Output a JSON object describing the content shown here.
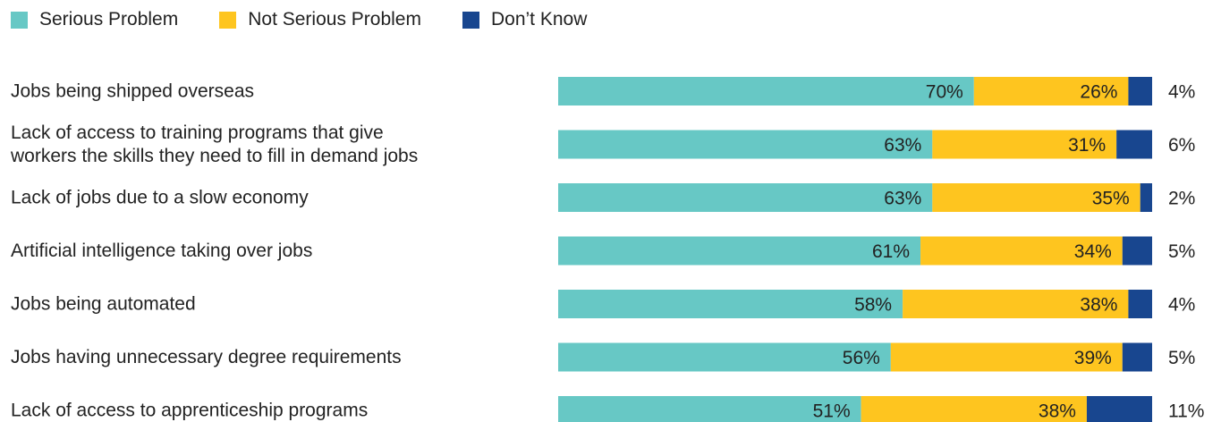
{
  "chart_data": {
    "type": "bar",
    "orientation": "horizontal",
    "stacked": true,
    "legend_position": "top-left",
    "xlim": [
      0,
      100
    ],
    "categories": [
      [
        "Jobs being shipped overseas"
      ],
      [
        "Lack of access to training programs that give",
        "workers the skills they need to fill in demand jobs"
      ],
      [
        "Lack of jobs due to a slow economy"
      ],
      [
        "Artificial intelligence taking over jobs"
      ],
      [
        "Jobs being automated"
      ],
      [
        "Jobs having unnecessary degree requirements"
      ],
      [
        "Lack of access to apprenticeship programs"
      ]
    ],
    "series": [
      {
        "name": "Serious Problem",
        "color": "#67C8C5",
        "values": [
          70,
          63,
          63,
          61,
          58,
          56,
          51
        ]
      },
      {
        "name": "Not Serious Problem",
        "color": "#FEC51F",
        "values": [
          26,
          31,
          35,
          34,
          38,
          39,
          38
        ]
      },
      {
        "name": "Don’t Know",
        "color": "#18468F",
        "values": [
          4,
          6,
          2,
          5,
          4,
          5,
          11
        ]
      }
    ]
  }
}
